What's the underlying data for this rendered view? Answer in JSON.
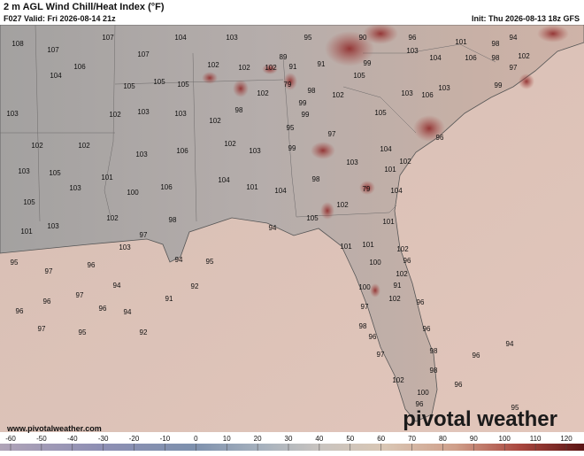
{
  "header": {
    "title": "2 m AGL Wind Chill/Heat Index (°F)",
    "valid": "F027 Valid: Fri 2026-08-14 21z",
    "init": "Init: Thu 2026-08-13 18z GFS"
  },
  "map": {
    "labels": [
      107,
      108,
      107,
      107,
      104,
      103,
      95,
      90,
      96,
      101,
      98,
      94,
      106,
      104,
      105,
      105,
      105,
      102,
      102,
      102,
      89,
      91,
      91,
      99,
      103,
      104,
      106,
      98,
      97,
      102,
      99,
      103,
      106,
      103,
      105,
      79,
      98,
      102,
      99,
      99,
      103,
      102,
      103,
      103,
      98,
      102,
      105,
      95,
      97,
      96,
      102,
      102,
      102,
      102,
      103,
      99,
      104,
      103,
      106,
      103,
      101,
      102,
      103,
      105,
      101,
      103,
      98,
      104,
      101,
      104,
      79,
      100,
      106,
      105,
      102,
      104,
      102,
      105,
      101,
      103,
      101,
      97,
      98,
      94,
      101,
      101,
      102,
      103,
      96,
      95,
      94,
      95,
      96,
      97,
      100,
      102,
      91,
      100,
      94,
      92,
      91,
      97,
      96,
      102,
      96,
      96,
      96,
      94,
      97,
      98,
      97,
      95,
      92,
      96,
      96,
      97,
      94,
      96,
      98,
      98,
      102,
      96,
      100,
      96,
      95
    ]
  },
  "colorbar": {
    "ticks": [
      -60,
      -50,
      -40,
      -30,
      -20,
      -10,
      0,
      10,
      20,
      30,
      40,
      50,
      60,
      70,
      80,
      90,
      100,
      110,
      120
    ]
  },
  "watermark": {
    "logo": "pivotal weather",
    "website": "www.pivotalweather.com"
  }
}
